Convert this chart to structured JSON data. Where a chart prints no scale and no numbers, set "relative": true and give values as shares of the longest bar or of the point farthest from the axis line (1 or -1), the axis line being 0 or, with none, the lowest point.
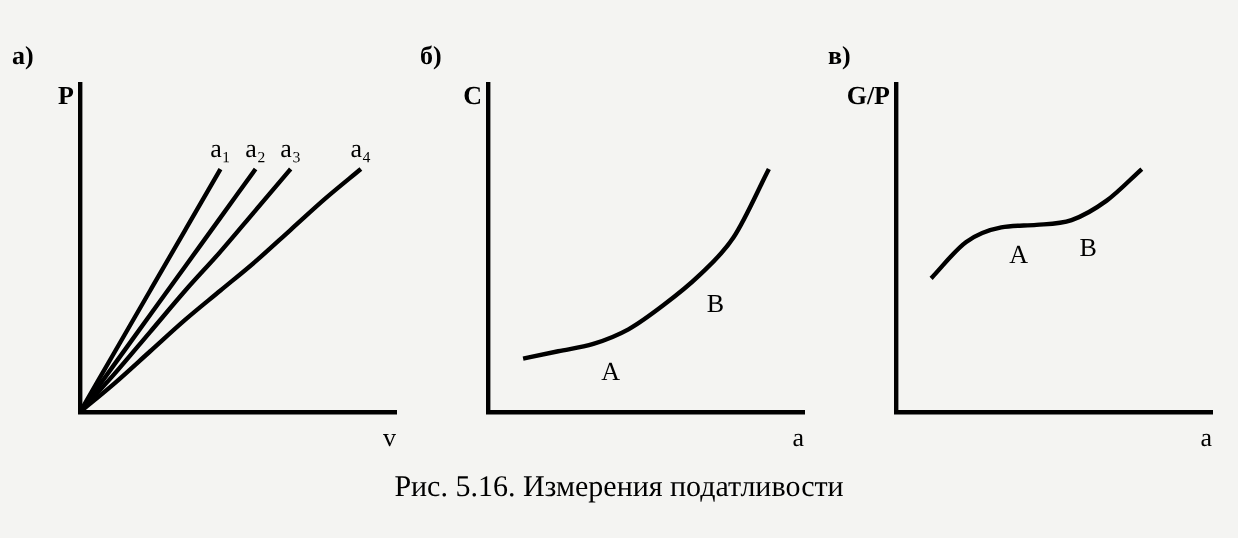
{
  "chart_data": [
    {
      "type": "line",
      "title": "а)",
      "ylabel": "P",
      "xlabel": "v",
      "relative": true,
      "legend": false,
      "grid": false,
      "marker": "none",
      "categories": [
        null,
        null,
        null,
        null,
        null,
        null,
        null,
        null,
        null,
        null
      ],
      "series": [
        {
          "name": "a₁",
          "color": "#000000",
          "values": [
            0,
            0.25,
            0.5,
            0.75,
            1,
            null,
            null,
            null,
            null,
            null
          ]
        },
        {
          "name": "a₂",
          "color": "#000000",
          "values": [
            0,
            0.2,
            0.4,
            0.6,
            0.8,
            1,
            null,
            null,
            null,
            null
          ]
        },
        {
          "name": "a₃",
          "color": "#000000",
          "values": [
            0,
            0.16,
            0.33,
            0.5,
            0.66,
            0.83,
            1,
            null,
            null,
            null
          ]
        },
        {
          "name": "a₄",
          "color": "#000000",
          "values": [
            0,
            0.12,
            0.25,
            0.38,
            0.5,
            0.62,
            0.75,
            0.88,
            1,
            null
          ]
        }
      ]
    },
    {
      "type": "line",
      "title": "б)",
      "ylabel": "C",
      "xlabel": "a",
      "relative": true,
      "legend": false,
      "grid": false,
      "marker": "none",
      "categories": [
        null,
        null,
        null,
        null,
        null,
        null,
        null,
        null,
        null,
        null
      ],
      "series": [
        {
          "color": "#000000",
          "values": [
            null,
            0.22,
            0.25,
            0.28,
            0.34,
            0.44,
            0.56,
            0.72,
            1,
            null
          ]
        }
      ],
      "annotations": [
        "A",
        "B"
      ],
      "subtitle": "Рис. 5.16. Измерения податливости"
    },
    {
      "type": "line",
      "title": "в)",
      "ylabel": "G/P",
      "xlabel": "a",
      "relative": true,
      "legend": false,
      "grid": false,
      "marker": "none",
      "categories": [
        null,
        null,
        null,
        null,
        null,
        null,
        null,
        null,
        null,
        null
      ],
      "series": [
        {
          "color": "#000000",
          "values": [
            null,
            0.55,
            0.7,
            0.76,
            0.77,
            0.79,
            0.87,
            1,
            null,
            null
          ]
        }
      ],
      "annotations": [
        "A",
        "B"
      ]
    }
  ]
}
